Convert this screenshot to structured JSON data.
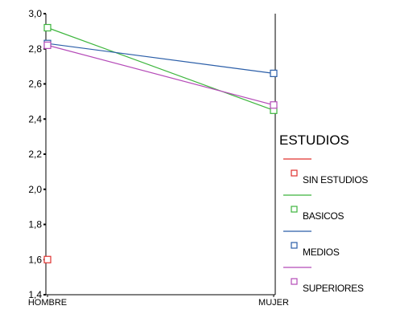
{
  "chart_data": {
    "type": "line",
    "categories": [
      "HOMBRE",
      "MUJER"
    ],
    "ylim": [
      1.4,
      3.0
    ],
    "yticks": [
      "1,4",
      "1,6",
      "1,8",
      "2,0",
      "2,2",
      "2,4",
      "2,6",
      "2,8",
      "3,0"
    ],
    "ytick_values": [
      1.4,
      1.6,
      1.8,
      2.0,
      2.2,
      2.4,
      2.6,
      2.8,
      3.0
    ],
    "xlabel": "",
    "ylabel": "",
    "grid": false,
    "legend_title": "ESTUDIOS",
    "legend_position": "right",
    "series": [
      {
        "name": "SIN ESTUDIOS",
        "values": [
          1.6,
          null
        ],
        "color": "#e0312e"
      },
      {
        "name": "BASICOS",
        "values": [
          2.92,
          2.45
        ],
        "color": "#3cb53c"
      },
      {
        "name": "MEDIOS",
        "values": [
          2.83,
          2.66
        ],
        "color": "#2b5ea8"
      },
      {
        "name": "SUPERIORES",
        "values": [
          2.82,
          2.48
        ],
        "color": "#b54bb8"
      }
    ]
  }
}
